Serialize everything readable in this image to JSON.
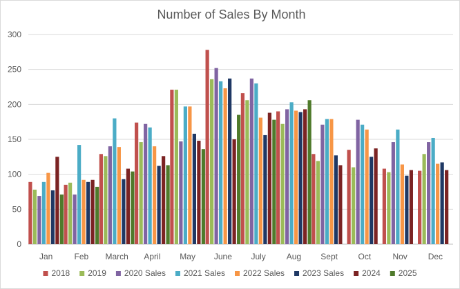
{
  "chart_data": {
    "type": "bar",
    "title": "Number of Sales By Month",
    "xlabel": "",
    "ylabel": "",
    "ylim": [
      0,
      300
    ],
    "yticks": [
      0,
      50,
      100,
      150,
      200,
      250,
      300
    ],
    "grid": true,
    "legend_position": "bottom",
    "categories": [
      "Jan",
      "Feb",
      "March",
      "April",
      "May",
      "June",
      "July",
      "Aug",
      "Sept",
      "Oct",
      "Nov",
      "Dec"
    ],
    "series": [
      {
        "name": "2018",
        "color": "#c0504d",
        "values": [
          89,
          85,
          129,
          174,
          221,
          278,
          216,
          190,
          129,
          135,
          108,
          105
        ]
      },
      {
        "name": "2019",
        "color": "#9bbb59",
        "values": [
          78,
          88,
          126,
          146,
          221,
          236,
          206,
          172,
          119,
          110,
          103,
          129
        ]
      },
      {
        "name": "2020 Sales",
        "color": "#8064a2",
        "values": [
          69,
          71,
          140,
          172,
          147,
          252,
          237,
          193,
          171,
          178,
          146,
          146
        ]
      },
      {
        "name": "2021 Sales",
        "color": "#4bacc6",
        "values": [
          89,
          142,
          180,
          167,
          197,
          233,
          230,
          203,
          179,
          171,
          164,
          152
        ]
      },
      {
        "name": "2022 Sales",
        "color": "#f79646",
        "values": [
          102,
          92,
          139,
          140,
          197,
          223,
          181,
          191,
          179,
          164,
          114,
          115
        ]
      },
      {
        "name": "2023 Sales",
        "color": "#1f3864",
        "values": [
          77,
          89,
          93,
          112,
          158,
          237,
          156,
          189,
          127,
          125,
          98,
          117
        ]
      },
      {
        "name": "2024",
        "color": "#7b2323",
        "values": [
          125,
          92,
          108,
          126,
          148,
          150,
          188,
          193,
          113,
          137,
          106,
          106
        ]
      },
      {
        "name": "2025",
        "color": "#4f7a2b",
        "values": [
          71,
          82,
          104,
          113,
          136,
          185,
          178,
          206,
          null,
          null,
          null,
          null
        ]
      }
    ]
  }
}
